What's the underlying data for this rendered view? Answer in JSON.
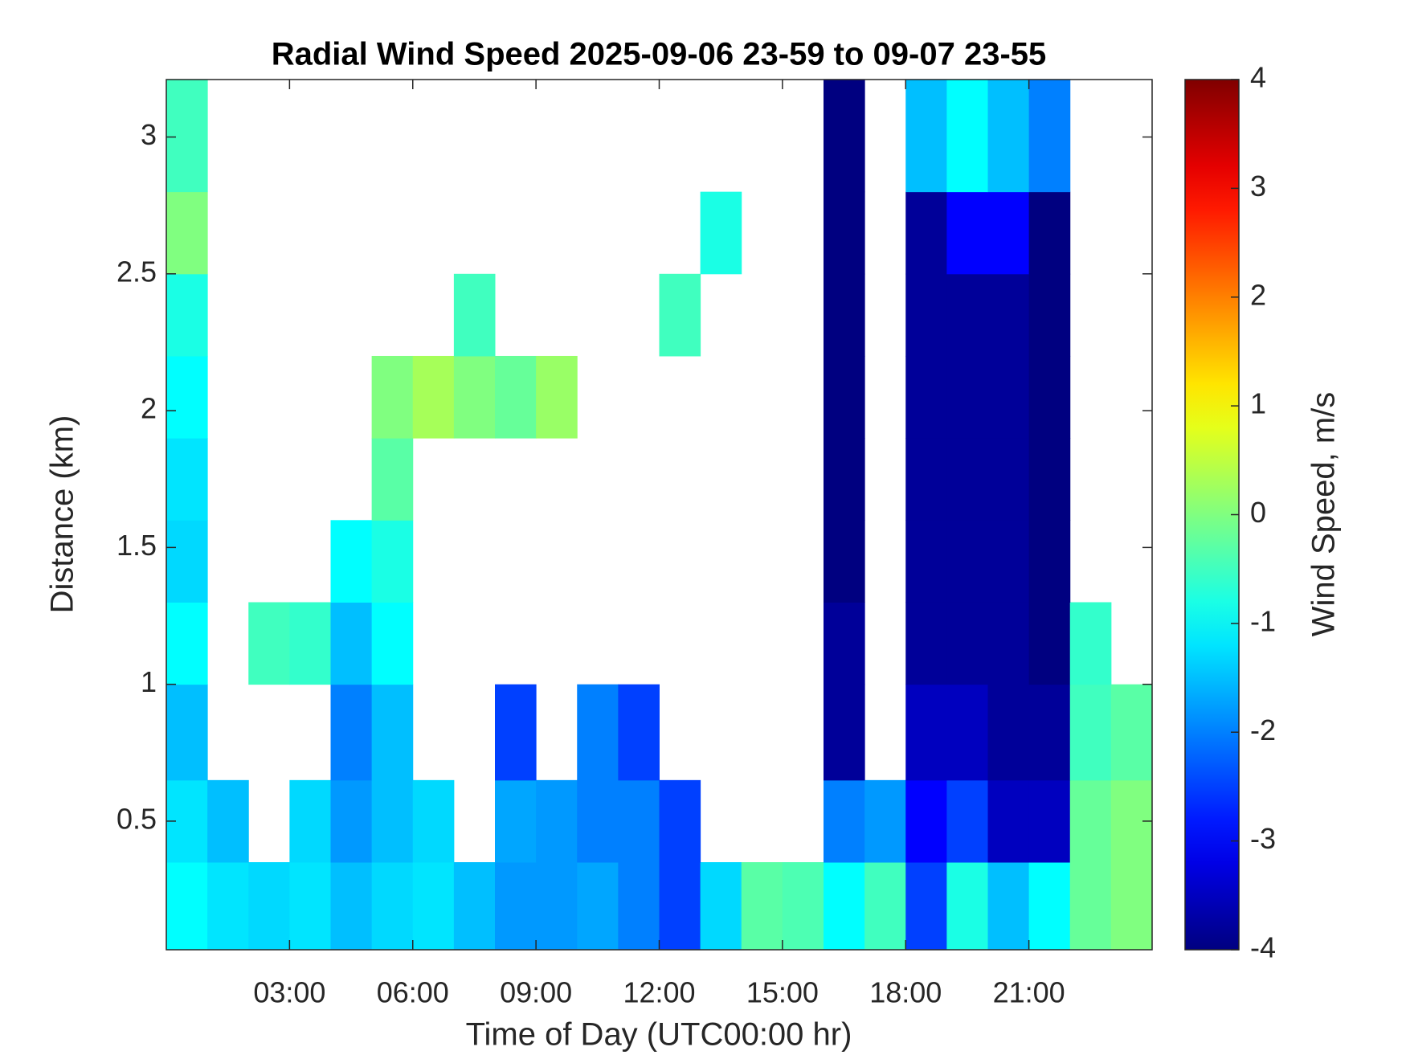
{
  "chart_data": {
    "type": "heatmap",
    "title": "Radial Wind Speed 2025-09-06 23-59 to 09-07 23-55",
    "xlabel": "Time of Day (UTC00:00 hr)",
    "ylabel": "Distance (km)",
    "colorbar_label": "Wind Speed, m/s",
    "colormap": "jet",
    "x": [
      0,
      1,
      2,
      3,
      4,
      5,
      6,
      7,
      8,
      9,
      10,
      11,
      12,
      13,
      14,
      15,
      16,
      17,
      18,
      19,
      20,
      21,
      22,
      23,
      24
    ],
    "y": [
      0.03,
      0.35,
      0.65,
      1.0,
      1.3,
      1.6,
      1.9,
      2.2,
      2.5,
      2.8,
      3.21
    ],
    "values": [
      [
        -1,
        -1.2,
        -1.3,
        -1.2,
        -1.5,
        -1.3,
        -1.2,
        -1.5,
        -1.8,
        -1.8,
        -1.7,
        -2,
        -2.5,
        -1.3,
        -0.3,
        -0.4,
        -1,
        -0.5,
        -2.5,
        -0.8,
        -1.5,
        -1,
        -0.2,
        0
      ],
      [
        -1.2,
        -1.5,
        null,
        -1.3,
        -1.8,
        -1.5,
        -1.3,
        null,
        -1.7,
        -1.8,
        -2,
        -2,
        -2.5,
        null,
        null,
        null,
        -2,
        -1.8,
        -3,
        -2.5,
        -3.5,
        -3.5,
        -0.2,
        0
      ],
      [
        -1.5,
        null,
        null,
        null,
        -2,
        -1.5,
        null,
        null,
        -2.5,
        null,
        -2,
        -2.5,
        null,
        null,
        null,
        null,
        -3.8,
        null,
        -3.5,
        -3.5,
        -3.8,
        -3.8,
        -0.5,
        -0.3
      ],
      [
        -1,
        null,
        -0.5,
        -0.6,
        -1.5,
        -1,
        null,
        null,
        null,
        null,
        null,
        null,
        null,
        null,
        null,
        null,
        -3.8,
        null,
        -3.8,
        -3.8,
        -3.8,
        -4,
        -0.6,
        null
      ],
      [
        -1.3,
        null,
        null,
        null,
        -1,
        -0.8,
        null,
        null,
        null,
        null,
        null,
        null,
        null,
        null,
        null,
        null,
        -4,
        null,
        -3.8,
        -3.8,
        -3.8,
        -4,
        null,
        null
      ],
      [
        -1.2,
        null,
        null,
        null,
        null,
        -0.3,
        null,
        null,
        null,
        null,
        null,
        null,
        null,
        null,
        null,
        null,
        -4,
        null,
        -3.8,
        -3.8,
        -3.8,
        -4,
        null,
        null
      ],
      [
        -1,
        null,
        null,
        null,
        null,
        0,
        0.3,
        0,
        -0.2,
        0.2,
        null,
        null,
        null,
        null,
        null,
        null,
        -4,
        null,
        -3.8,
        -3.8,
        -3.8,
        -4,
        null,
        null
      ],
      [
        -0.8,
        null,
        null,
        null,
        null,
        null,
        null,
        -0.5,
        null,
        null,
        null,
        null,
        -0.5,
        null,
        null,
        null,
        -4,
        null,
        -3.8,
        -3.8,
        -3.8,
        -4,
        null,
        null
      ],
      [
        0,
        null,
        null,
        null,
        null,
        null,
        null,
        null,
        null,
        null,
        null,
        null,
        null,
        -0.8,
        null,
        null,
        -4,
        null,
        -3.8,
        -3,
        -3,
        -4,
        null,
        null
      ],
      [
        -0.5,
        null,
        null,
        null,
        null,
        null,
        null,
        null,
        null,
        null,
        null,
        null,
        null,
        null,
        null,
        null,
        -4,
        null,
        -1.5,
        -1,
        -1.5,
        -2,
        null,
        null
      ]
    ],
    "xlim": [
      0,
      24
    ],
    "xticks": [
      {
        "value": 3,
        "label": "03:00"
      },
      {
        "value": 6,
        "label": "06:00"
      },
      {
        "value": 9,
        "label": "09:00"
      },
      {
        "value": 12,
        "label": "12:00"
      },
      {
        "value": 15,
        "label": "15:00"
      },
      {
        "value": 18,
        "label": "18:00"
      },
      {
        "value": 21,
        "label": "21:00"
      }
    ],
    "ylim": [
      0.03,
      3.21
    ],
    "yticks": [
      0.5,
      1,
      1.5,
      2,
      2.5,
      3
    ],
    "clim": [
      -4,
      4
    ],
    "cticks": [
      -4,
      -3,
      -2,
      -1,
      0,
      1,
      2,
      3,
      4
    ]
  }
}
